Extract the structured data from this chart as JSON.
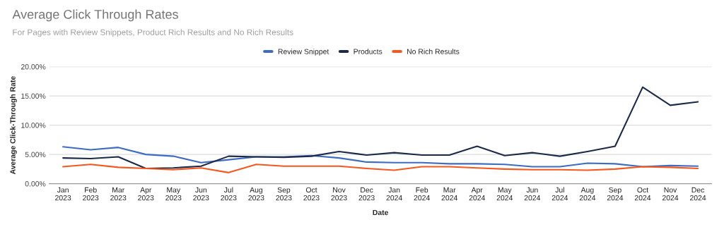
{
  "chart_data": {
    "type": "line",
    "title": "Average Click Through Rates",
    "subtitle": "For Pages with Review Snippets, Product Rich Results and No Rich Results",
    "xlabel": "Date",
    "ylabel": "Average Click-Through Rate",
    "categories": [
      "Jan\n2023",
      "Feb\n2023",
      "Mar\n2023",
      "Apr\n2023",
      "May\n2023",
      "Jun\n2023",
      "Jul\n2023",
      "Aug\n2023",
      "Sep\n2023",
      "Oct\n2023",
      "Nov\n2023",
      "Dec\n2023",
      "Jan\n2024",
      "Feb\n2024",
      "Mar\n2024",
      "Apr\n2024",
      "May\n2024",
      "Jun\n2024",
      "Jul\n2024",
      "Aug\n2024",
      "Sep\n2024",
      "Oct\n2024",
      "Nov\n2024",
      "Dec\n2024"
    ],
    "series": [
      {
        "name": "Review Snippet",
        "color": "#3d6cc0",
        "values": [
          6.3,
          5.8,
          6.2,
          5.0,
          4.7,
          3.6,
          4.1,
          4.6,
          4.6,
          4.8,
          4.4,
          3.7,
          3.6,
          3.6,
          3.4,
          3.4,
          3.3,
          2.9,
          2.9,
          3.5,
          3.4,
          2.9,
          3.1,
          3.0
        ]
      },
      {
        "name": "Products",
        "color": "#1c2a48",
        "values": [
          4.4,
          4.3,
          4.6,
          2.6,
          2.7,
          3.0,
          4.7,
          4.6,
          4.5,
          4.7,
          5.5,
          4.9,
          5.3,
          4.9,
          4.9,
          6.4,
          4.8,
          5.3,
          4.7,
          5.5,
          6.4,
          16.5,
          13.4,
          14.0
        ]
      },
      {
        "name": "No Rich Results",
        "color": "#f4581f",
        "values": [
          2.9,
          3.3,
          2.8,
          2.6,
          2.4,
          2.7,
          1.9,
          3.3,
          3.0,
          3.0,
          3.0,
          2.6,
          2.3,
          2.9,
          2.9,
          2.7,
          2.5,
          2.4,
          2.4,
          2.3,
          2.5,
          2.9,
          2.8,
          2.6
        ]
      }
    ],
    "ylim": [
      0,
      20
    ],
    "yticks": [
      {
        "value": 0,
        "label": "0.00%"
      },
      {
        "value": 5,
        "label": "5.00%"
      },
      {
        "value": 10,
        "label": "10.00%"
      },
      {
        "value": 15,
        "label": "15.00%"
      },
      {
        "value": 20,
        "label": "20.00%"
      }
    ],
    "grid": "y",
    "legend": "top",
    "line_style": "solid",
    "marker": "none"
  }
}
